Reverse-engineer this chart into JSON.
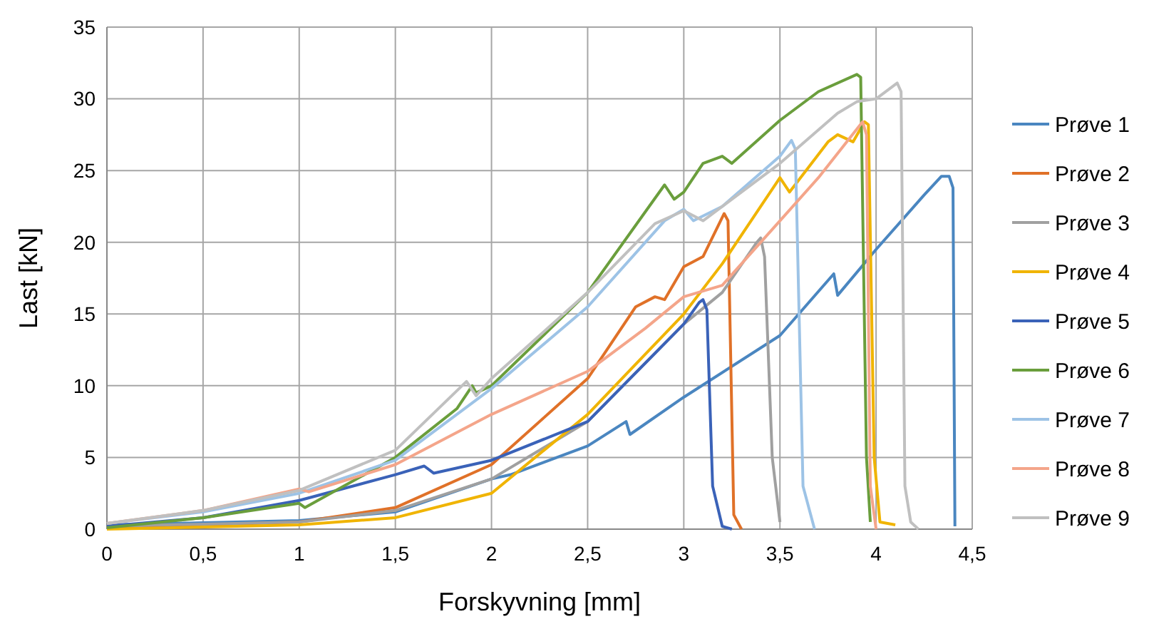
{
  "chart_data": {
    "type": "line",
    "xlabel": "Forskyvning [mm]",
    "ylabel": "Last [kN]",
    "xlim": [
      0,
      4.5
    ],
    "ylim": [
      0,
      35
    ],
    "xticks": [
      0,
      {
        "value": 0.5,
        "label": "0,5"
      },
      1,
      {
        "value": 1.5,
        "label": "1,5"
      },
      2,
      {
        "value": 2.5,
        "label": "2,5"
      },
      3,
      {
        "value": 3.5,
        "label": "3,5"
      },
      4,
      {
        "value": 4.5,
        "label": "4,5"
      }
    ],
    "yticks": [
      0,
      5,
      10,
      15,
      20,
      25,
      30,
      35
    ],
    "grid": true,
    "legend": "right",
    "marker": "none",
    "line_style": "solid",
    "series": [
      {
        "name": "Prøve 1",
        "color": "#4a86c0",
        "x": [
          0,
          1,
          1.5,
          2,
          2.1,
          2.5,
          2.7,
          2.72,
          3,
          3.5,
          3.78,
          3.8,
          4,
          4.25,
          4.34,
          4.38,
          4.4,
          4.41
        ],
        "values": [
          0.3,
          0.6,
          1.2,
          3.5,
          3.8,
          5.8,
          7.5,
          6.6,
          9.2,
          13.5,
          17.8,
          16.3,
          19.5,
          23.3,
          24.6,
          24.6,
          23.8,
          0.2
        ]
      },
      {
        "name": "Prøve 2",
        "color": "#e07128",
        "x": [
          0,
          1,
          1.5,
          2,
          2.5,
          2.75,
          2.85,
          2.9,
          3,
          3.1,
          3.21,
          3.23,
          3.26,
          3.3
        ],
        "values": [
          0.1,
          0.5,
          1.5,
          4.5,
          10.5,
          15.5,
          16.2,
          16,
          18.3,
          19,
          22,
          21.5,
          1,
          0
        ]
      },
      {
        "name": "Prøve 3",
        "color": "#a0a0a0",
        "x": [
          0,
          1,
          1.5,
          2,
          2.5,
          3,
          3.2,
          3.38,
          3.4,
          3.42,
          3.46,
          3.5
        ],
        "values": [
          0.2,
          0.5,
          1.3,
          3.5,
          7.5,
          14.3,
          16.5,
          20,
          20.3,
          19,
          5,
          0.5
        ]
      },
      {
        "name": "Prøve 4",
        "color": "#f0b400",
        "x": [
          0,
          1,
          1.5,
          2,
          2.5,
          3,
          3.2,
          3.4,
          3.5,
          3.55,
          3.75,
          3.8,
          3.88,
          3.94,
          3.96,
          3.99,
          4.02,
          4.1
        ],
        "values": [
          0,
          0.3,
          0.8,
          2.5,
          8,
          15,
          18.5,
          22.5,
          24.5,
          23.5,
          27,
          27.5,
          27,
          28.4,
          28.2,
          5,
          0.5,
          0.3
        ]
      },
      {
        "name": "Prøve 5",
        "color": "#3a62b8",
        "x": [
          0,
          0.5,
          1,
          1.5,
          1.65,
          1.7,
          2,
          2.5,
          3,
          3.08,
          3.1,
          3.12,
          3.15,
          3.2,
          3.25
        ],
        "values": [
          0.2,
          0.8,
          2,
          3.8,
          4.4,
          3.9,
          4.8,
          7.5,
          14.3,
          15.8,
          16,
          15.3,
          3,
          0.2,
          0
        ]
      },
      {
        "name": "Prøve 6",
        "color": "#6a9e3c",
        "x": [
          0,
          0.5,
          1,
          1.03,
          1.5,
          1.82,
          1.9,
          1.92,
          2,
          2.5,
          2.9,
          2.95,
          3,
          3.1,
          3.2,
          3.25,
          3.5,
          3.7,
          3.9,
          3.92,
          3.95,
          3.97
        ],
        "values": [
          0.1,
          0.8,
          1.8,
          1.5,
          5,
          8.4,
          10,
          9.5,
          10,
          16.5,
          24,
          23,
          23.5,
          25.5,
          26,
          25.5,
          28.5,
          30.5,
          31.7,
          31.5,
          5,
          0.5
        ]
      },
      {
        "name": "Prøve 7",
        "color": "#9dc3e6",
        "x": [
          0,
          0.5,
          1,
          1.5,
          2,
          2.5,
          2.9,
          3,
          3.05,
          3.2,
          3.5,
          3.56,
          3.58,
          3.62,
          3.68
        ],
        "values": [
          0.4,
          1.2,
          2.5,
          4.8,
          9.8,
          15.5,
          21.5,
          22.3,
          21.5,
          22.5,
          26,
          27.1,
          26.5,
          3,
          0
        ]
      },
      {
        "name": "Prøve 8",
        "color": "#f4a58a",
        "x": [
          0,
          0.5,
          1,
          1.05,
          1.5,
          2,
          2.5,
          2.8,
          3,
          3.2,
          3.5,
          3.7,
          3.93,
          3.95,
          3.97,
          4
        ],
        "values": [
          0.4,
          1.3,
          2.8,
          2.6,
          4.5,
          8,
          11,
          14,
          16.2,
          17,
          21.5,
          24.5,
          28.4,
          27.5,
          3,
          0
        ]
      },
      {
        "name": "Prøve 9",
        "color": "#c0c0c0",
        "x": [
          0,
          0.5,
          1,
          1.5,
          1.87,
          1.92,
          2,
          2.5,
          2.85,
          3,
          3.1,
          3.5,
          3.8,
          3.9,
          4,
          4.11,
          4.13,
          4.15,
          4.18,
          4.22
        ],
        "values": [
          0.4,
          1.3,
          2.7,
          5.5,
          10.3,
          9.3,
          10.5,
          16.5,
          21.3,
          22.2,
          21.5,
          25.5,
          29,
          29.8,
          30,
          31.1,
          30.5,
          3,
          0.5,
          0
        ]
      }
    ]
  }
}
